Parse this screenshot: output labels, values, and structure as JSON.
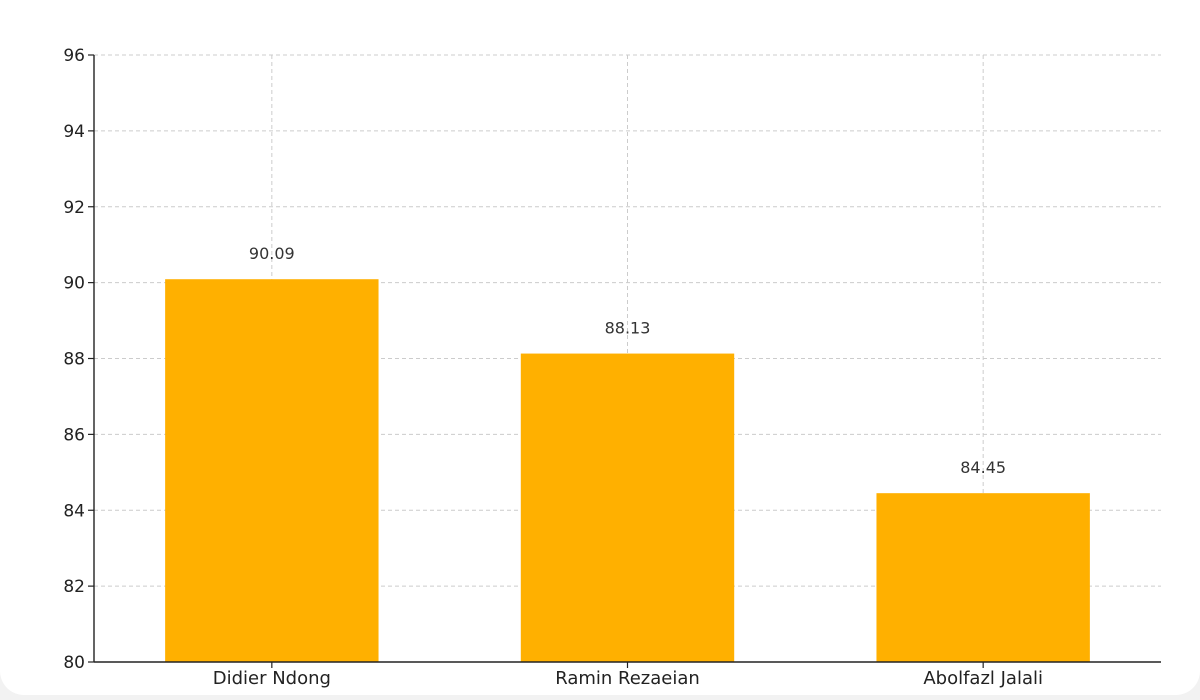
{
  "chart_data": {
    "type": "bar",
    "categories": [
      "Didier Ndong",
      "Ramin Rezaeian",
      "Abolfazl Jalali"
    ],
    "values": [
      90.09,
      88.13,
      84.45
    ],
    "value_labels": [
      "90.09",
      "88.13",
      "84.45"
    ],
    "title": "",
    "xlabel": "",
    "ylabel": "",
    "ylim": [
      80,
      96
    ],
    "yticks": [
      80,
      82,
      84,
      86,
      88,
      90,
      92,
      94,
      96
    ],
    "grid": true,
    "bar_color": "#FFB000"
  }
}
